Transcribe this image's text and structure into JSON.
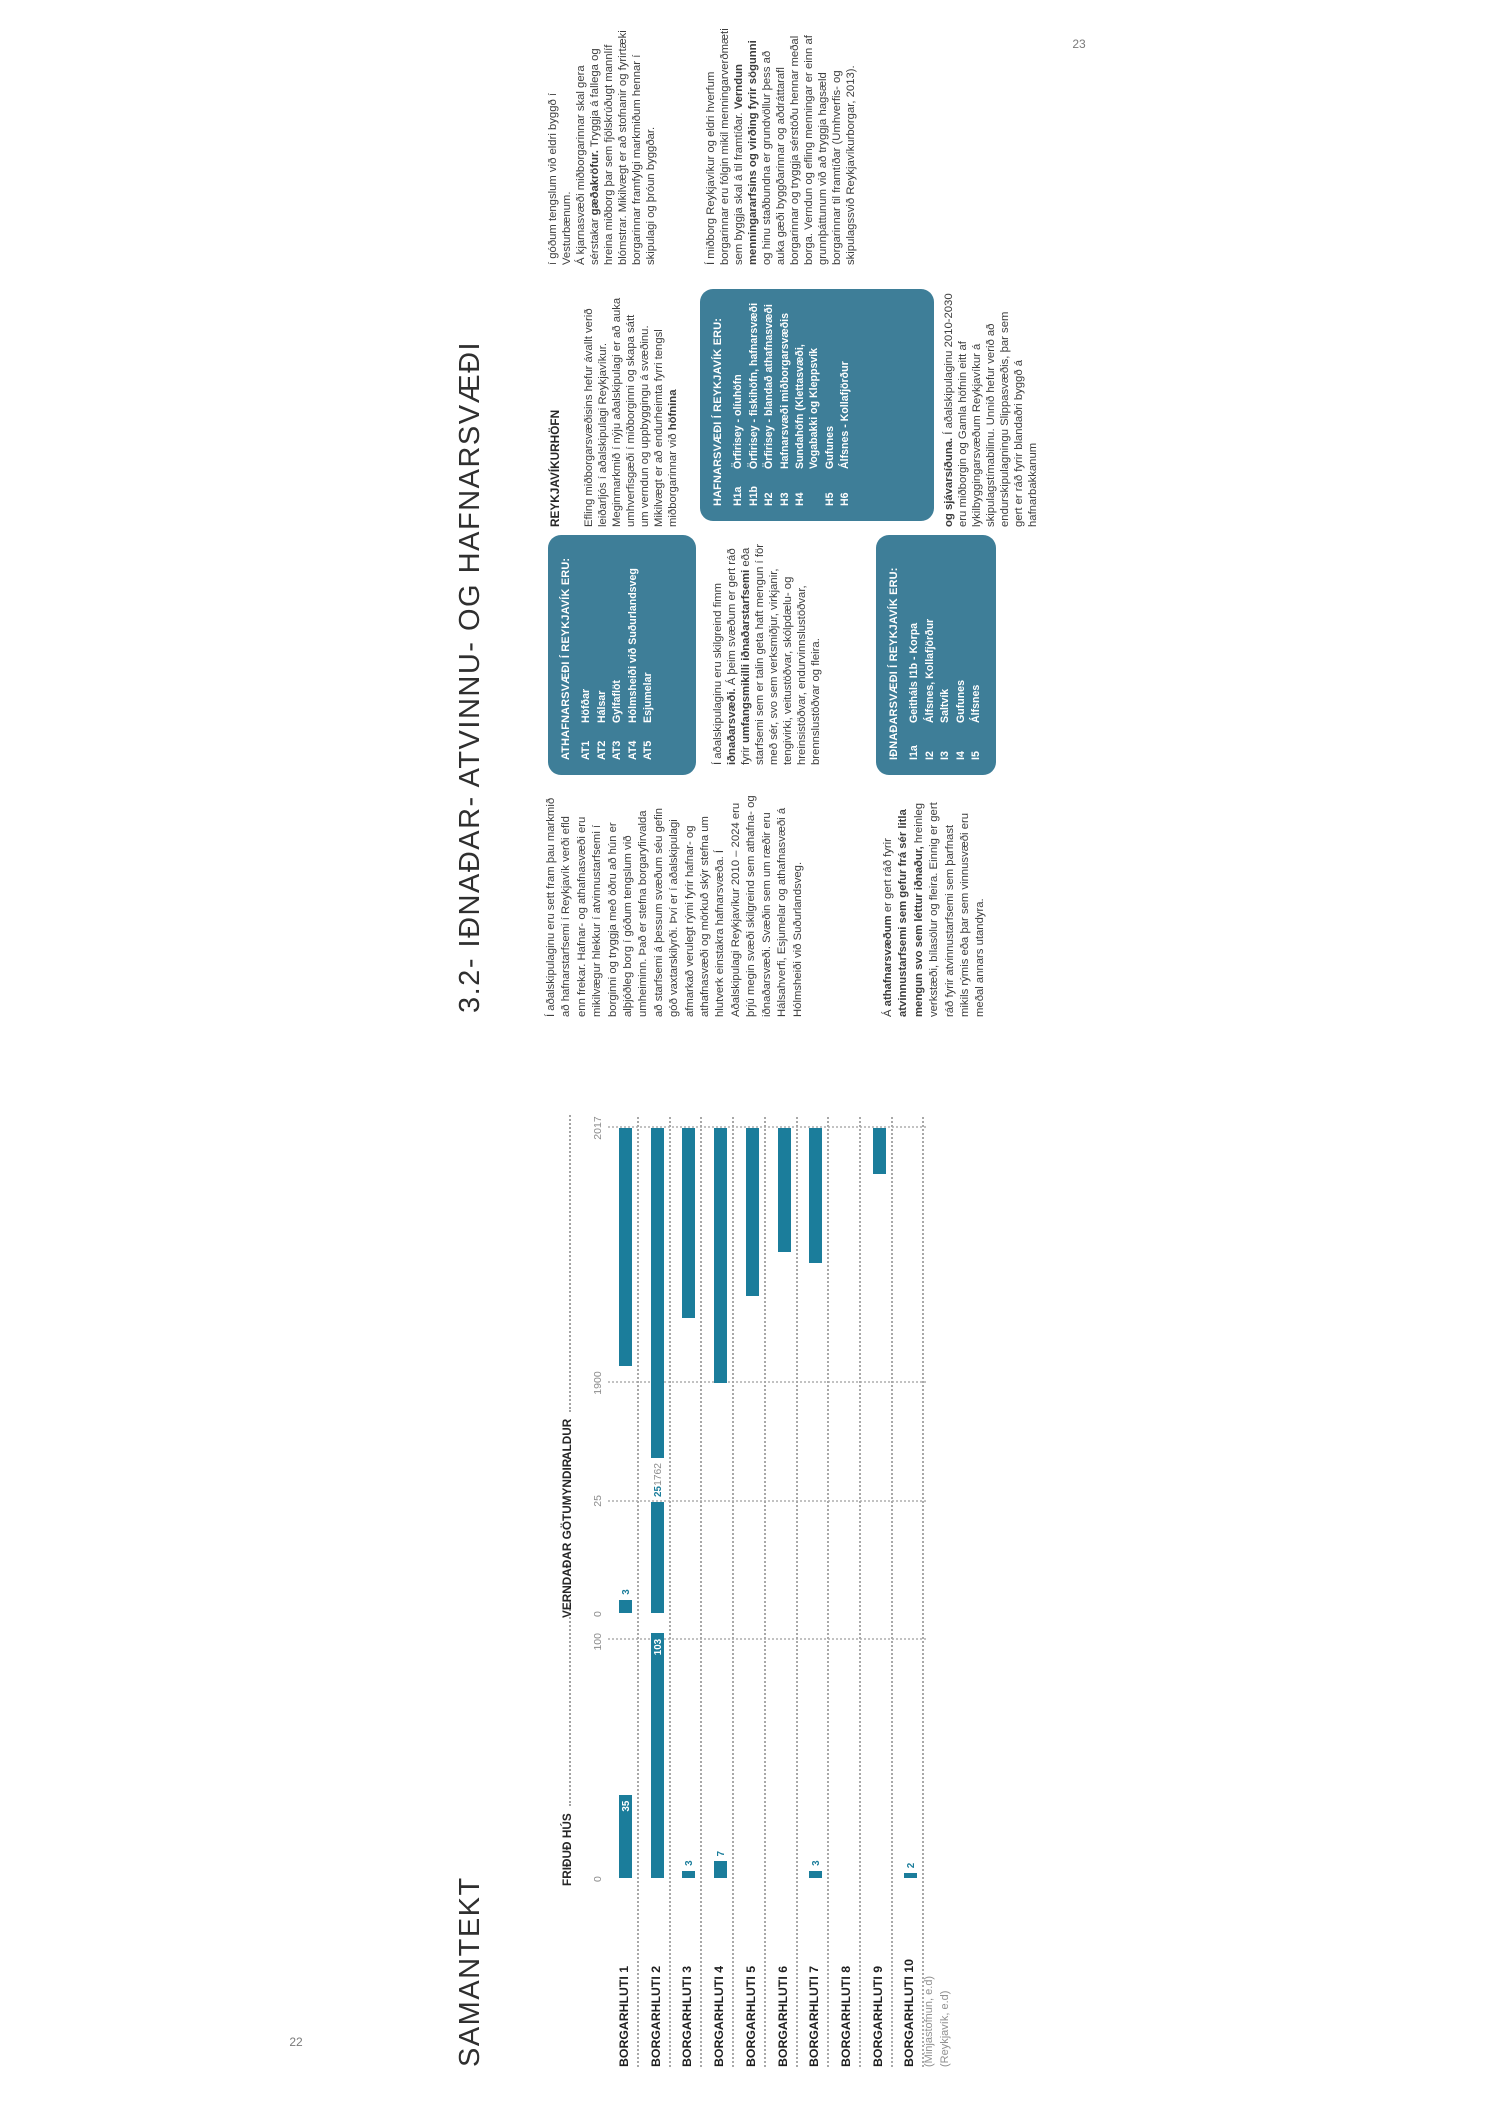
{
  "colors": {
    "bar_teal": "#1b7d9b",
    "box_teal": "#3e7e98",
    "body_text": "#3d3d3d",
    "axis_gray": "#8c8c8c"
  },
  "page22": {
    "page_number": "22",
    "title": "SAMANTEKT",
    "footnote_lines": [
      "(Minjastofnun, e.d)",
      "(Reykjavík, e.d)"
    ],
    "chart_data": {
      "type": "bar",
      "orientation": "horizontal-rows-rotated-90ccw",
      "categories": [
        "BORGARHLUTI 1",
        "BORGARHLUTI 2",
        "BORGARHLUTI 3",
        "BORGARHLUTI 4",
        "BORGARHLUTI 5",
        "BORGARHLUTI 6",
        "BORGARHLUTI 7",
        "BORGARHLUTI 8",
        "BORGARHLUTI 9",
        "BORGARHLUTI 10"
      ],
      "panels": [
        {
          "title": "FRIÐUÐ HÚS",
          "ticks": [
            "0",
            "100"
          ],
          "range": [
            0,
            100
          ],
          "values": [
            35,
            103,
            3,
            7,
            null,
            null,
            3,
            null,
            null,
            2
          ]
        },
        {
          "title": "VERNDAÐAR GÖTUMYNDIR",
          "ticks": [
            "0",
            "25"
          ],
          "range": [
            0,
            25
          ],
          "values": [
            3,
            25,
            null,
            null,
            null,
            null,
            null,
            null,
            null,
            null
          ]
        },
        {
          "title": "ALDUR",
          "ticks": [
            "1762",
            "1900",
            "2017"
          ],
          "year_ranges": [
            [
              1908,
              2017
            ],
            [
              1762,
              2017
            ],
            [
              1930,
              2017
            ],
            [
              1900,
              2017
            ],
            [
              1940,
              2017
            ],
            [
              1960,
              2017
            ],
            [
              1955,
              2017
            ],
            null,
            [
              1996,
              2017
            ],
            null
          ]
        }
      ],
      "grid": "dotted",
      "legend": false
    }
  },
  "page23": {
    "page_number": "23",
    "title": "3.2- IÐNAÐAR- ATVINNU- OG HAFNARSVÆÐI",
    "col_a_p1": [
      {
        "t": "Í aðalskipulaginu eru sett fram þau markmið að hafnarstarfsemi í Reykjavík verði efld enn frekar. Hafnar- og athafnasvæði eru mikilvægur hlekkur í atvinnustarfsemi í borginni og tryggja með öðru að hún er alþjóðleg borg í góðum tengslum við umheiminn. Það er stefna borgaryfirvalda að starfsemi á þessum svæðum séu gefin góð vaxtarskilyrði. Því er í aðalskipulagi afmarkað verulegt rými fyrir hafnar- og athafnasvæði og mörkuð skýr stefna um hlutverk einstakra hafnarsvæða. Í Aðalskipulagi Reykjavíkur 2010 – 2024 eru þrjú megin svæði skilgreind sem athafna- og iðnaðarsvæði. Svæðin sem um ræðir eru Hálsahverfi, Esjumelar og athafnasvæði á Hólmsheiði við Suðurlandsveg."
      }
    ],
    "col_a_p2": [
      {
        "t": "Á "
      },
      {
        "t": "athafnarsvæðum",
        "b": true
      },
      {
        "t": " er gert ráð fyrir "
      },
      {
        "t": "atvinnustarfsemi sem gefur frá sér litla mengun svo sem léttur iðnaður,",
        "b": true
      },
      {
        "t": " hreinleg verkstæði, bílasölur og fleira. Einnig er gert ráð fyrir atvinnustarfsemi sem þarfnast mikils rýmis eða þar sem vinnusvæði eru meðal annars utandyra."
      }
    ],
    "box_athafnarsvaedi": {
      "heading": "ATHAFNARSVÆÐI Í REYKJAVÍK ERU:",
      "items": [
        [
          "AT1",
          "Höfðar"
        ],
        [
          "AT2",
          "Hálsar"
        ],
        [
          "AT3",
          "Gylfaflöt"
        ],
        [
          "AT4",
          "Hólmsheiði við Suðurlandsveg"
        ],
        [
          "AT5",
          "Esjumelar"
        ]
      ]
    },
    "col_b_p1": [
      {
        "t": "Í aðalskipulaginu eru skilgreind fimm "
      },
      {
        "t": "iðnaðarsvæði.",
        "b": true
      },
      {
        "t": " Á þeim svæðum er gert ráð fyrir "
      },
      {
        "t": "umfangsmikilli iðnaðarstarfsemi",
        "b": true
      },
      {
        "t": " eða starfsemi sem er talin geta haft mengun í för með sér, svo sem verksmiðjur, virkjanir, tengivirki, veitustöðvar, skólpdælu- og hreinsistöðvar, endurvinnslustöðvar, brennslustöðvar og fleira."
      }
    ],
    "box_idnadarsvaedi": {
      "heading": "IÐNAÐARSVÆÐI Í REYKJAVÍK ERU:",
      "items": [
        [
          "I1a",
          "Geitháls I1b - Korpa"
        ],
        [
          "I2",
          "Álfsnes, Kollafjörður"
        ],
        [
          "I3",
          "Saltvík"
        ],
        [
          "I4",
          "Gufunes"
        ],
        [
          "I5",
          "Álfsnes"
        ]
      ]
    },
    "col_c_heading": "REYKJAVÍKURHÖFN",
    "col_c_p1": [
      {
        "t": "Efling miðborgarsvæðisins hefur ávallt verið leiðarljós í aðalskipulagi Reykjavíkur. Meginmarkmið í nýju aðalskipulagi er að auka umhverfisgæði í miðborginni og skapa sátt um verndun og uppbyggingu á svæðinu. Mikilvægt er að endurheimta fyrri tengsl miðborgarinnar við "
      },
      {
        "t": "höfnina",
        "b": true
      }
    ],
    "box_hafnarsvaedi": {
      "heading": "HAFNARSVÆÐI Í REYKJAVÍK ERU:",
      "items": [
        [
          "H1a",
          "Örfirisey - olíuhöfn"
        ],
        [
          "H1b",
          "Örfirisey - fiskihöfn, hafnarsvæði"
        ],
        [
          "H2",
          "Örfirisey - blandað athafnasvæði"
        ],
        [
          "H3",
          "Hafnarsvæði miðborgarsvæðis"
        ],
        [
          "H4",
          "Sundahöfn (Klettasvæði, Vogabakki og Kleppsvík"
        ],
        [
          "H5",
          "Gufunes"
        ],
        [
          "H6",
          "Álfsnes - Kollafjörður"
        ]
      ]
    },
    "col_c_p2": [
      {
        "t": "og sjávarsíðuna.",
        "b": true
      },
      {
        "t": " Í aðalskipulaginu 2010-2030 eru miðborgin og Gamla höfnin eitt af lykilbyggingarsvæðum Reykjavíkur á skipulagstímabilinu. Unnið hefur verið að endurskipulagningu Slippasvæðis, þar sem gert er ráð fyrir blandaðri byggð á hafnarbakkanum"
      }
    ],
    "col_d_p1a": [
      {
        "t": "í góðum tengslum við eldri byggð í Vesturbænum."
      }
    ],
    "col_d_p1b": [
      {
        "t": "Á kjarnasvæði miðborgarinnar skal gera sérstakar "
      },
      {
        "t": "gæðakröfur.",
        "b": true
      },
      {
        "t": " Tryggja á fallega og hreina miðborg þar sem fjölskrúðugt mannlíf blómstrar. Mikilvægt er að stofnanir og fyrirtæki borgarinnar framfylgi markmiðum hennar í skipulagi og þróun byggðar."
      }
    ],
    "col_d_p2": [
      {
        "t": "Í miðborg Reykjavíkur og eldri hverfum borgarinnar eru fólgin mikil menningarverðmæti sem byggja skal á til framtíðar. "
      },
      {
        "t": "Verndun menningararfsins og virðing fyrir sögunni",
        "b": true
      },
      {
        "t": " og hinu staðbundna er grundvöllur þess að auka gæði byggðarinnar og aðdráttarafl borgarinnar og tryggja sérstöðu hennar meðal borga. Verndun og efling menningar er einn af grunnþáttunum við að tryggja hagsæld borgarinnar til framtíðar (Umhverfis- og skipulagssvið Reykjavíkurborgar, 2013)."
      }
    ]
  }
}
